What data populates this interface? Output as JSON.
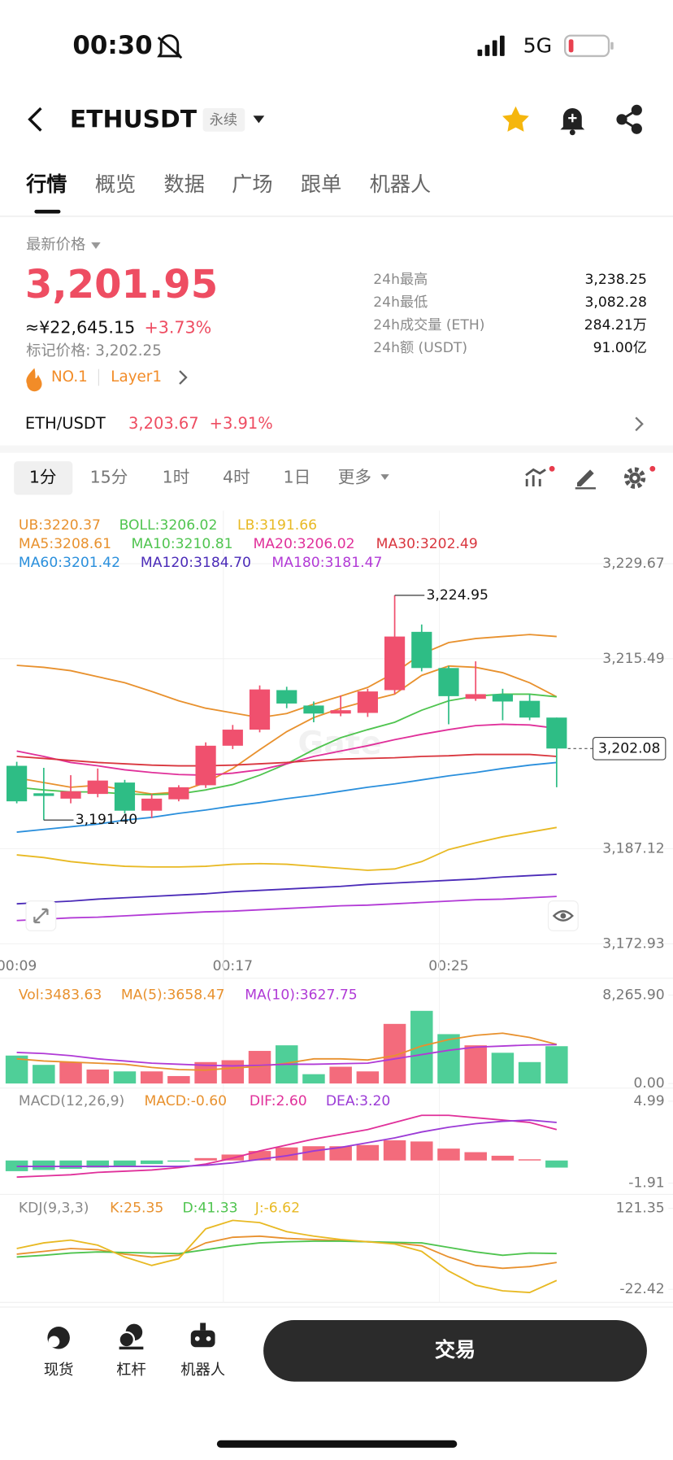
{
  "status_bar": {
    "time": "00:30",
    "network": "5G"
  },
  "header": {
    "symbol": "ETHUSDT",
    "contract": "永续"
  },
  "tabs": [
    "行情",
    "概览",
    "数据",
    "广场",
    "跟单",
    "机器人"
  ],
  "price": {
    "caption": "最新价格",
    "last": "3,201.95",
    "cny": "≈¥22,645.15",
    "change": "+3.73%",
    "mark": "标记价格: 3,202.25",
    "rank": "NO.1",
    "sector": "Layer1"
  },
  "stats": [
    {
      "label": "24h最高",
      "value": "3,238.25"
    },
    {
      "label": "24h最低",
      "value": "3,082.28"
    },
    {
      "label": "24h成交量 (ETH)",
      "value": "284.21万"
    },
    {
      "label": "24h额 (USDT)",
      "value": "91.00亿"
    }
  ],
  "pair": {
    "name": "ETH/USDT",
    "price": "3,203.67",
    "change": "+3.91%"
  },
  "intervals": [
    "1分",
    "15分",
    "1时",
    "4时",
    "1日",
    "更多"
  ],
  "watermark": "Gate",
  "chart_data": [
    {
      "type": "candlestick",
      "categories": [
        "00:09",
        null,
        null,
        null,
        null,
        null,
        null,
        null,
        "00:17",
        null,
        null,
        null,
        null,
        null,
        null,
        null,
        "00:25",
        null,
        null,
        null,
        null
      ],
      "open": [
        3199.5,
        3195.4,
        3194.6,
        3195.3,
        3197.0,
        3192.8,
        3194.5,
        3196.6,
        3202.5,
        3204.9,
        3210.8,
        3208.5,
        3207.3,
        3207.4,
        3210.8,
        3219.5,
        3214.1,
        3209.5,
        3210.2,
        3209.2,
        3206.7
      ],
      "high": [
        3200.1,
        3199.2,
        3198.1,
        3199.1,
        3197.4,
        3195.3,
        3196.6,
        3203.0,
        3205.6,
        3211.5,
        3211.3,
        3209.1,
        3210.0,
        3211.0,
        3224.95,
        3220.6,
        3214.4,
        3215.1,
        3211.0,
        3210.2,
        3206.7
      ],
      "low": [
        3193.9,
        3191.4,
        3193.9,
        3194.8,
        3192.4,
        3191.7,
        3194.2,
        3196.2,
        3202.0,
        3204.5,
        3208.1,
        3206.0,
        3206.9,
        3206.8,
        3210.2,
        3213.6,
        3205.7,
        3209.2,
        3206.3,
        3206.3,
        3196.3
      ],
      "close": [
        3194.2,
        3195.0,
        3195.7,
        3197.3,
        3192.8,
        3194.6,
        3196.3,
        3202.5,
        3204.9,
        3210.9,
        3208.8,
        3207.3,
        3207.8,
        3210.6,
        3218.8,
        3214.1,
        3209.9,
        3210.2,
        3209.1,
        3206.7,
        3202.08
      ],
      "up_color": "#f0506e",
      "down_color": "#2ebd85",
      "ylim": [
        3172.93,
        3229.67
      ],
      "yticks": [
        {
          "value": 3229.67,
          "label": "3,229.67"
        },
        {
          "value": 3215.49,
          "label": "3,215.49"
        },
        {
          "value": 3187.12,
          "label": "3,187.12"
        },
        {
          "value": 3172.93,
          "label": "3,172.93"
        }
      ],
      "grid": true,
      "annotations": [
        "3,224.95",
        "3,191.40"
      ],
      "last_label": "3,202.08",
      "series": [
        {
          "name": "UB:3220.37",
          "color": "#e8912e",
          "values": [
            3214.5,
            3214.2,
            3213.7,
            3212.8,
            3211.9,
            3210.6,
            3209.2,
            3208.1,
            3207.4,
            3206.7,
            3207.3,
            3208.7,
            3209.9,
            3211.2,
            3213.4,
            3216.2,
            3217.9,
            3218.5,
            3218.8,
            3219.1,
            3218.8
          ]
        },
        {
          "name": "BOLL:3206.02",
          "color": "#4fc44f"
        },
        {
          "name": "LB:3191.66",
          "color": "#e8b923",
          "values": [
            3186.2,
            3185.8,
            3185.2,
            3184.8,
            3184.5,
            3184.4,
            3184.4,
            3184.5,
            3184.8,
            3184.9,
            3184.8,
            3184.5,
            3184.2,
            3183.9,
            3184.1,
            3185.2,
            3187.0,
            3188.0,
            3188.9,
            3189.6,
            3190.3
          ]
        },
        {
          "name": "MA5:3208.61",
          "color": "#e8912e",
          "values": [
            3197.7,
            3197.0,
            3196.3,
            3196.6,
            3195.9,
            3195.3,
            3195.6,
            3197.0,
            3199.1,
            3201.9,
            3204.6,
            3206.7,
            3208.1,
            3209.2,
            3210.2,
            3213.0,
            3214.4,
            3214.2,
            3213.4,
            3211.9,
            3209.8
          ]
        },
        {
          "name": "MA10:3210.81",
          "color": "#4fc44f",
          "values": [
            3196.3,
            3195.9,
            3195.6,
            3195.6,
            3195.3,
            3195.2,
            3195.3,
            3195.9,
            3196.7,
            3198.1,
            3199.8,
            3201.9,
            3203.7,
            3204.9,
            3206.0,
            3207.8,
            3209.2,
            3209.9,
            3210.2,
            3210.2,
            3209.8
          ]
        },
        {
          "name": "MA20:3206.02",
          "color": "#e0309a",
          "values": [
            3201.7,
            3200.9,
            3200.0,
            3199.5,
            3198.9,
            3198.5,
            3198.2,
            3198.1,
            3198.4,
            3198.9,
            3199.8,
            3200.9,
            3201.7,
            3202.5,
            3203.4,
            3204.2,
            3204.9,
            3205.5,
            3205.7,
            3205.6,
            3205.1
          ]
        },
        {
          "name": "MA30:3202.49",
          "color": "#d9363e",
          "values": [
            3200.9,
            3200.6,
            3200.3,
            3200.0,
            3199.8,
            3199.6,
            3199.5,
            3199.5,
            3199.6,
            3199.8,
            3200.0,
            3200.3,
            3200.5,
            3200.6,
            3200.7,
            3200.9,
            3201.0,
            3201.2,
            3201.2,
            3201.2,
            3200.9
          ]
        },
        {
          "name": "MA60:3201.42",
          "color": "#2a8fdc",
          "values": [
            3189.6,
            3190.0,
            3190.4,
            3190.8,
            3191.4,
            3191.8,
            3192.4,
            3192.9,
            3193.5,
            3194.0,
            3194.6,
            3195.1,
            3195.7,
            3196.3,
            3196.8,
            3197.4,
            3198.0,
            3198.5,
            3199.1,
            3199.6,
            3200.0
          ]
        },
        {
          "name": "MA120:3184.70",
          "color": "#4b2bb8",
          "values": [
            3178.9,
            3179.1,
            3179.3,
            3179.6,
            3179.8,
            3180.0,
            3180.2,
            3180.4,
            3180.7,
            3180.9,
            3181.1,
            3181.3,
            3181.5,
            3181.8,
            3182.0,
            3182.2,
            3182.4,
            3182.6,
            3182.9,
            3183.1,
            3183.3
          ]
        },
        {
          "name": "MA180:3181.47",
          "color": "#b23ad6",
          "values": [
            3176.4,
            3176.6,
            3176.8,
            3176.9,
            3177.1,
            3177.3,
            3177.5,
            3177.7,
            3177.8,
            3178.0,
            3178.2,
            3178.4,
            3178.6,
            3178.7,
            3178.9,
            3179.1,
            3179.3,
            3179.5,
            3179.6,
            3179.8,
            3180.0
          ]
        }
      ]
    },
    {
      "type": "bar",
      "title": "Vol:3483.63",
      "values": [
        2610,
        1740,
        2001,
        1305,
        1131,
        1131,
        696,
        2001,
        2175,
        3045,
        3567,
        870,
        1566,
        1131,
        5568,
        6786,
        4611,
        3567,
        2871,
        2001,
        3483.63
      ],
      "colors": [
        "#4fcf98",
        "#4fcf98",
        "#f36b7c",
        "#f36b7c",
        "#4fcf98",
        "#f36b7c",
        "#f36b7c",
        "#f36b7c",
        "#f36b7c",
        "#f36b7c",
        "#4fcf98",
        "#4fcf98",
        "#f36b7c",
        "#f36b7c",
        "#f36b7c",
        "#4fcf98",
        "#4fcf98",
        "#f36b7c",
        "#4fcf98",
        "#4fcf98",
        "#4fcf98"
      ],
      "ylim": [
        0,
        8265.9
      ],
      "yticks": [
        {
          "value": 8265.9,
          "label": "8,265.90"
        },
        {
          "value": 0,
          "label": "0.00"
        }
      ],
      "series": [
        {
          "name": "MA(5):3658.47",
          "color": "#e8912e",
          "values": [
            2300,
            2100,
            2000,
            1900,
            1800,
            1500,
            1300,
            1250,
            1450,
            1600,
            1900,
            2300,
            2300,
            2200,
            2600,
            3500,
            4100,
            4500,
            4700,
            4300,
            3658.47
          ]
        },
        {
          "name": "MA(10):3627.75",
          "color": "#b03ad6",
          "values": [
            2900,
            2800,
            2600,
            2300,
            2100,
            1900,
            1800,
            1700,
            1650,
            1700,
            1800,
            1800,
            1850,
            1900,
            2300,
            2700,
            3100,
            3400,
            3500,
            3600,
            3627.75
          ]
        }
      ]
    },
    {
      "type": "bar",
      "title": "MACD(12,26,9)",
      "bar_name": "MACD:-0.60",
      "values": [
        -0.9,
        -0.8,
        -0.7,
        -0.6,
        -0.5,
        -0.3,
        -0.1,
        0.2,
        0.5,
        0.8,
        1.1,
        1.2,
        1.2,
        1.3,
        1.7,
        1.6,
        1.0,
        0.7,
        0.4,
        0.1,
        -0.6
      ],
      "colors": [
        "#4fcf98",
        "#4fcf98",
        "#4fcf98",
        "#4fcf98",
        "#4fcf98",
        "#4fcf98",
        "#4fcf98",
        "#f36b7c",
        "#f36b7c",
        "#f36b7c",
        "#f36b7c",
        "#f36b7c",
        "#f36b7c",
        "#f36b7c",
        "#f36b7c",
        "#f36b7c",
        "#f36b7c",
        "#f36b7c",
        "#f36b7c",
        "#f36b7c",
        "#4fcf98"
      ],
      "ylim": [
        -1.91,
        4.99
      ],
      "yticks": [
        4.99,
        -1.91
      ],
      "series": [
        {
          "name": "DIF:2.60",
          "color": "#e0309a",
          "values": [
            -1.4,
            -1.3,
            -1.2,
            -1.0,
            -0.9,
            -0.8,
            -0.6,
            -0.3,
            0.2,
            0.8,
            1.3,
            1.8,
            2.2,
            2.6,
            3.2,
            3.8,
            3.8,
            3.6,
            3.4,
            3.2,
            2.6
          ]
        },
        {
          "name": "DEA:3.20",
          "color": "#9b3ad6",
          "values": [
            -0.5,
            -0.5,
            -0.5,
            -0.5,
            -0.5,
            -0.5,
            -0.5,
            -0.4,
            -0.2,
            0.1,
            0.4,
            0.8,
            1.1,
            1.5,
            1.9,
            2.4,
            2.8,
            3.1,
            3.3,
            3.4,
            3.2
          ]
        }
      ]
    },
    {
      "type": "line",
      "title": "KDJ(9,3,3)",
      "ylim": [
        -22.42,
        121.35
      ],
      "yticks": [
        121.35,
        -22.42
      ],
      "series": [
        {
          "name": "K:25.35",
          "color": "#e8912e",
          "values": [
            40,
            45,
            50,
            48,
            40,
            35,
            38,
            60,
            70,
            72,
            68,
            66,
            64,
            62,
            60,
            55,
            35,
            20,
            15,
            18,
            25.35
          ]
        },
        {
          "name": "D:41.33",
          "color": "#4fc44f",
          "values": [
            35,
            38,
            42,
            44,
            43,
            42,
            41,
            48,
            55,
            60,
            62,
            63,
            63,
            62,
            61,
            60,
            52,
            44,
            38,
            42,
            41.33
          ]
        },
        {
          "name": "J:-6.62",
          "color": "#e8b923",
          "values": [
            50,
            60,
            65,
            56,
            35,
            20,
            32,
            85,
            100,
            96,
            80,
            72,
            66,
            62,
            58,
            45,
            10,
            -15,
            -25,
            -28,
            -6.62
          ]
        }
      ]
    }
  ],
  "bottom_nav": {
    "items": [
      "现货",
      "杠杆",
      "机器人"
    ],
    "action": "交易"
  }
}
